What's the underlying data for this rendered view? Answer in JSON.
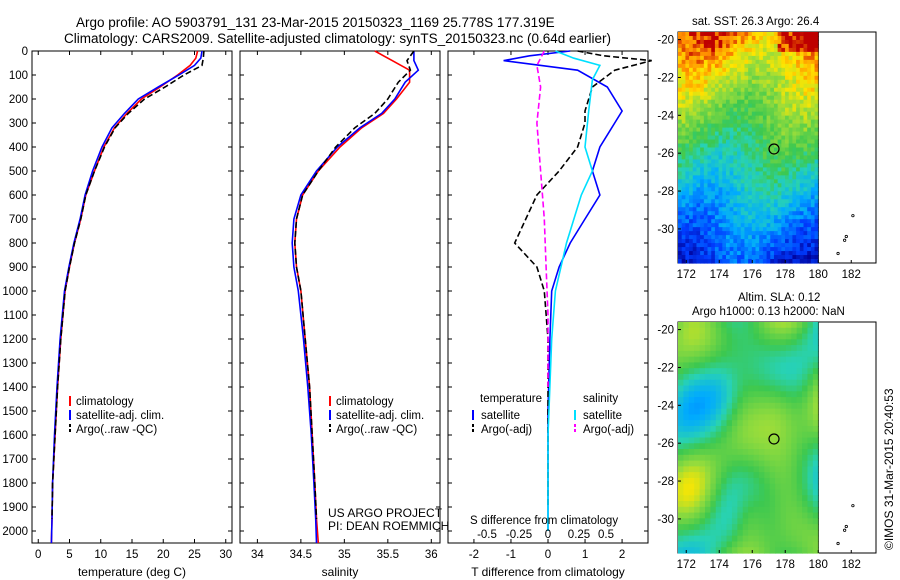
{
  "header": {
    "line1": "Argo profile: AO 5903791_131 23-Mar-2015 20150323_1169 25.778S 177.319E",
    "line2": "Climatology: CARS2009. Satellite-adjusted climatology: synTS_20150323.nc (0.64d earlier)"
  },
  "footer": {
    "project": "US ARGO PROJECT",
    "pi": "PI: DEAN ROEMMICH",
    "copyright": "©IMOS 31-Mar-2015 20:40:53"
  },
  "colors": {
    "climatology": "#ff0000",
    "satellite": "#0000ff",
    "argo": "#000000",
    "sal_satellite": "#00e0ff",
    "sal_argo": "#ff00ff"
  },
  "chart_data": [
    {
      "id": "temperature",
      "type": "line",
      "xlabel": "temperature (deg C)",
      "ylabel": "",
      "xlim": [
        -1,
        31
      ],
      "ylim": [
        2050,
        0
      ],
      "xticks": [
        0,
        5,
        10,
        15,
        20,
        25,
        30
      ],
      "yticks": [
        0,
        100,
        200,
        300,
        400,
        500,
        600,
        700,
        800,
        900,
        1000,
        1100,
        1200,
        1300,
        1400,
        1500,
        1600,
        1700,
        1800,
        1900,
        2000
      ],
      "legend": [
        "climatology",
        "satellite-adj. clim.",
        "Argo(..raw -QC)"
      ],
      "series": [
        {
          "name": "climatology",
          "color": "#ff0000",
          "dash": false,
          "x": [
            25.5,
            25.2,
            24.3,
            22.3,
            19.5,
            16.5,
            14.2,
            12.2,
            10.5,
            9.0,
            7.6,
            6.8,
            5.8,
            5.0,
            4.3,
            3.6,
            3.1,
            2.7,
            2.3,
            2.2,
            2.1
          ],
          "y": [
            0,
            30,
            60,
            100,
            150,
            200,
            260,
            320,
            400,
            500,
            600,
            700,
            800,
            900,
            1000,
            1200,
            1400,
            1600,
            1800,
            1950,
            2050
          ]
        },
        {
          "name": "satellite-adj. clim.",
          "color": "#0000ff",
          "dash": false,
          "x": [
            26.2,
            26.0,
            25.0,
            22.5,
            19.2,
            16.0,
            13.8,
            11.8,
            10.2,
            8.7,
            7.5,
            6.7,
            5.7,
            4.9,
            4.2,
            3.5,
            3.0,
            2.6,
            2.3,
            2.2,
            2.1
          ],
          "y": [
            0,
            30,
            60,
            100,
            150,
            200,
            260,
            320,
            400,
            500,
            600,
            700,
            800,
            900,
            1000,
            1200,
            1400,
            1600,
            1800,
            1950,
            2050
          ]
        },
        {
          "name": "Argo(..raw -QC)",
          "color": "#000000",
          "dash": true,
          "x": [
            26.5,
            26.4,
            26.2,
            23.3,
            20.3,
            17.0,
            14.4,
            12.3,
            10.6,
            9.0,
            7.6,
            6.8,
            5.8,
            5.0,
            4.3,
            3.6,
            3.1,
            2.7,
            2.3,
            2.2
          ],
          "y": [
            0,
            30,
            60,
            100,
            150,
            200,
            260,
            320,
            400,
            500,
            600,
            700,
            800,
            900,
            1000,
            1200,
            1400,
            1600,
            1800,
            1950
          ]
        }
      ]
    },
    {
      "id": "salinity",
      "type": "line",
      "xlabel": "salinity",
      "ylabel": "",
      "xlim": [
        33.8,
        36.1
      ],
      "ylim": [
        2050,
        0
      ],
      "xticks": [
        34,
        34.5,
        35,
        35.5,
        36
      ],
      "legend": [
        "climatology",
        "satellite-adj. clim.",
        "Argo(..raw -QC)"
      ],
      "series": [
        {
          "name": "climatology",
          "color": "#ff0000",
          "dash": false,
          "x": [
            35.35,
            35.55,
            35.75,
            35.75,
            35.6,
            35.45,
            35.2,
            34.95,
            34.7,
            34.52,
            34.45,
            34.43,
            34.45,
            34.5,
            34.55,
            34.6,
            34.63,
            34.66,
            34.68,
            34.7
          ],
          "y": [
            0,
            40,
            80,
            130,
            200,
            260,
            320,
            400,
            500,
            600,
            700,
            800,
            900,
            1000,
            1200,
            1400,
            1600,
            1800,
            1950,
            2050
          ]
        },
        {
          "name": "satellite-adj. clim.",
          "color": "#0000ff",
          "dash": false,
          "x": [
            35.8,
            35.8,
            35.85,
            35.7,
            35.58,
            35.43,
            35.18,
            34.92,
            34.68,
            34.5,
            34.42,
            34.4,
            34.42,
            34.47,
            34.53,
            34.58,
            34.62,
            34.65,
            34.67,
            34.68
          ],
          "y": [
            0,
            40,
            80,
            130,
            200,
            260,
            320,
            400,
            500,
            600,
            700,
            800,
            900,
            1000,
            1200,
            1400,
            1600,
            1800,
            1950,
            2050
          ]
        },
        {
          "name": "Argo(..raw -QC)",
          "color": "#000000",
          "dash": true,
          "x": [
            35.8,
            35.72,
            35.76,
            35.62,
            35.5,
            35.35,
            35.12,
            34.9,
            34.7,
            34.52,
            34.45,
            34.43,
            34.45,
            34.5,
            34.55,
            34.6,
            34.63,
            34.66,
            34.68
          ],
          "y": [
            0,
            40,
            80,
            130,
            200,
            260,
            320,
            400,
            500,
            600,
            700,
            800,
            900,
            1000,
            1200,
            1400,
            1600,
            1800,
            1950
          ]
        }
      ]
    },
    {
      "id": "difference",
      "type": "line",
      "xlabel": "T difference from climatology",
      "top_label": "S difference from climatology",
      "xlim": [
        -2.7,
        2.7
      ],
      "ylim": [
        2050,
        0
      ],
      "xticks": [
        -2,
        -1,
        0,
        1,
        2
      ],
      "top_ticks": [
        "-0.5",
        "-0.25",
        "0",
        "0.25",
        "0.5"
      ],
      "legend_headers": [
        "temperature",
        "salinity"
      ],
      "legend": [
        "satellite",
        "Argo(-adj)",
        "satellite",
        "Argo(-adj)"
      ],
      "series": [
        {
          "name": "satellite",
          "color": "#0000ff",
          "dash": false,
          "x": [
            0.6,
            -0.5,
            -1.2,
            0.8,
            1.6,
            2.0,
            1.8,
            1.4,
            1.2,
            1.4,
            1.0,
            0.6,
            0.3,
            0.1,
            0.05,
            0.0,
            0.0,
            0.0
          ],
          "y": [
            0,
            20,
            40,
            80,
            150,
            250,
            300,
            400,
            500,
            600,
            700,
            800,
            900,
            1000,
            1200,
            1500,
            1800,
            2000
          ]
        },
        {
          "name": "Argo(-adj)",
          "color": "#000000",
          "dash": true,
          "x": [
            0.8,
            1.5,
            2.8,
            1.8,
            1.2,
            1.0,
            1.0,
            0.8,
            0.3,
            -0.3,
            -0.6,
            -0.9,
            -0.3,
            -0.1,
            0.0,
            0.0,
            0.0
          ],
          "y": [
            0,
            20,
            40,
            80,
            150,
            250,
            300,
            400,
            500,
            600,
            700,
            800,
            900,
            1000,
            1200,
            1500,
            1900
          ]
        },
        {
          "name": "satellite",
          "color": "#00e0ff",
          "dash": false,
          "x": [
            0.2,
            0.7,
            1.4,
            1.2,
            1.1,
            1.0,
            1.2,
            0.9,
            0.5,
            0.2,
            0.1,
            0.0,
            0.0
          ],
          "y": [
            0,
            30,
            60,
            120,
            250,
            400,
            500,
            600,
            800,
            1000,
            1200,
            1600,
            2000
          ]
        },
        {
          "name": "Argo(-adj)",
          "color": "#ff00ff",
          "dash": true,
          "x": [
            -0.1,
            -0.3,
            -0.2,
            -0.3,
            -0.2,
            -0.1,
            -0.05,
            0.0,
            0.0
          ],
          "y": [
            0,
            60,
            150,
            300,
            500,
            700,
            900,
            1100,
            1400
          ]
        }
      ]
    },
    {
      "id": "sst-map",
      "type": "heatmap",
      "title": "sat. SST: 26.3  Argo: 26.4",
      "xlim": [
        171.5,
        183.5
      ],
      "ylim": [
        -31.8,
        -19.6
      ],
      "xticks": [
        172,
        174,
        176,
        178,
        180,
        182
      ],
      "yticks": [
        -20,
        -22,
        -24,
        -26,
        -28,
        -30
      ],
      "float_position": {
        "lon": 177.319,
        "lat": -25.778
      }
    },
    {
      "id": "sla-map",
      "type": "heatmap",
      "title": "Altim. SLA: 0.12",
      "subtitle": "Argo h1000: 0.13 h2000: NaN",
      "xlim": [
        171.5,
        183.5
      ],
      "ylim": [
        -31.8,
        -19.6
      ],
      "xticks": [
        172,
        174,
        176,
        178,
        180,
        182
      ],
      "yticks": [
        -20,
        -22,
        -24,
        -26,
        -28,
        -30
      ],
      "float_position": {
        "lon": 177.319,
        "lat": -25.778
      }
    }
  ]
}
